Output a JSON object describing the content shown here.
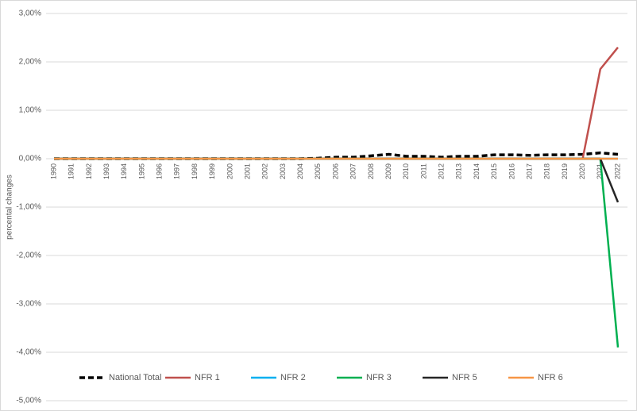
{
  "chart_data": {
    "type": "line",
    "y_label": "percental changes",
    "categories": [
      "1990",
      "1991",
      "1992",
      "1993",
      "1994",
      "1995",
      "1996",
      "1997",
      "1998",
      "1999",
      "2000",
      "2001",
      "2002",
      "2003",
      "2004",
      "2005",
      "2006",
      "2007",
      "2008",
      "2009",
      "2010",
      "2011",
      "2012",
      "2013",
      "2014",
      "2015",
      "2016",
      "2017",
      "2018",
      "2019",
      "2020",
      "2021",
      "2022"
    ],
    "series": [
      {
        "name": "National Total",
        "color": "#000000",
        "dashed": true,
        "values": [
          0,
          0,
          0,
          0,
          0,
          0,
          0,
          0,
          0,
          0,
          0,
          0,
          0,
          0,
          0,
          0.01,
          0.03,
          0.03,
          0.06,
          0.09,
          0.05,
          0.05,
          0.03,
          0.05,
          0.05,
          0.08,
          0.08,
          0.07,
          0.08,
          0.08,
          0.09,
          0.12,
          0.09
        ]
      },
      {
        "name": "NFR 1",
        "color": "#c0504d",
        "values": [
          0,
          0,
          0,
          0,
          0,
          0,
          0,
          0,
          0,
          0,
          0,
          0,
          0,
          0,
          0,
          0,
          0,
          0,
          0,
          0,
          0,
          0,
          0,
          0,
          0,
          0,
          0,
          0,
          0,
          0,
          0,
          1.85,
          2.3
        ]
      },
      {
        "name": "NFR 2",
        "color": "#00b0f0",
        "values": [
          0,
          0,
          0,
          0,
          0,
          0,
          0,
          0,
          0,
          0,
          0,
          0,
          0,
          0,
          0,
          0,
          0,
          0,
          0,
          0,
          0,
          0,
          0,
          0,
          0,
          0,
          0,
          0,
          0,
          0,
          0,
          0,
          0
        ]
      },
      {
        "name": "NFR 3",
        "color": "#00b050",
        "values": [
          0,
          0,
          0,
          0,
          0,
          0,
          0,
          0,
          0,
          0,
          0,
          0,
          0,
          0,
          0,
          0,
          0,
          0,
          0,
          0,
          0,
          0,
          0,
          0,
          0,
          0,
          0,
          0,
          0,
          0,
          0,
          0,
          -3.9
        ]
      },
      {
        "name": "NFR 5",
        "color": "#262626",
        "values": [
          0,
          0,
          0,
          0,
          0,
          0,
          0,
          0,
          0,
          0,
          0,
          0,
          0,
          0,
          0,
          0,
          0,
          0,
          0,
          0,
          0,
          0,
          0,
          0,
          0,
          0,
          0,
          0,
          0,
          0,
          0,
          0,
          -0.9
        ]
      },
      {
        "name": "NFR 6",
        "color": "#f79646",
        "values": [
          0,
          0,
          0,
          0,
          0,
          0,
          0,
          0,
          0,
          0,
          0,
          0,
          0,
          0,
          0,
          0,
          0,
          0,
          0,
          0,
          0,
          0,
          0,
          0,
          0,
          0,
          0,
          0,
          0,
          0,
          0,
          0,
          0
        ]
      }
    ],
    "ylim": [
      -5,
      3
    ],
    "yticks": [
      {
        "value": -5,
        "label": "-5,00%"
      },
      {
        "value": -4,
        "label": "-4,00%"
      },
      {
        "value": -3,
        "label": "-3,00%"
      },
      {
        "value": -2,
        "label": "-2,00%"
      },
      {
        "value": -1,
        "label": "-1,00%"
      },
      {
        "value": 0,
        "label": "0,00%"
      },
      {
        "value": 1,
        "label": "1,00%"
      },
      {
        "value": 2,
        "label": "2,00%"
      },
      {
        "value": 3,
        "label": "3,00%"
      }
    ],
    "grid": true,
    "legend": "bottom"
  }
}
